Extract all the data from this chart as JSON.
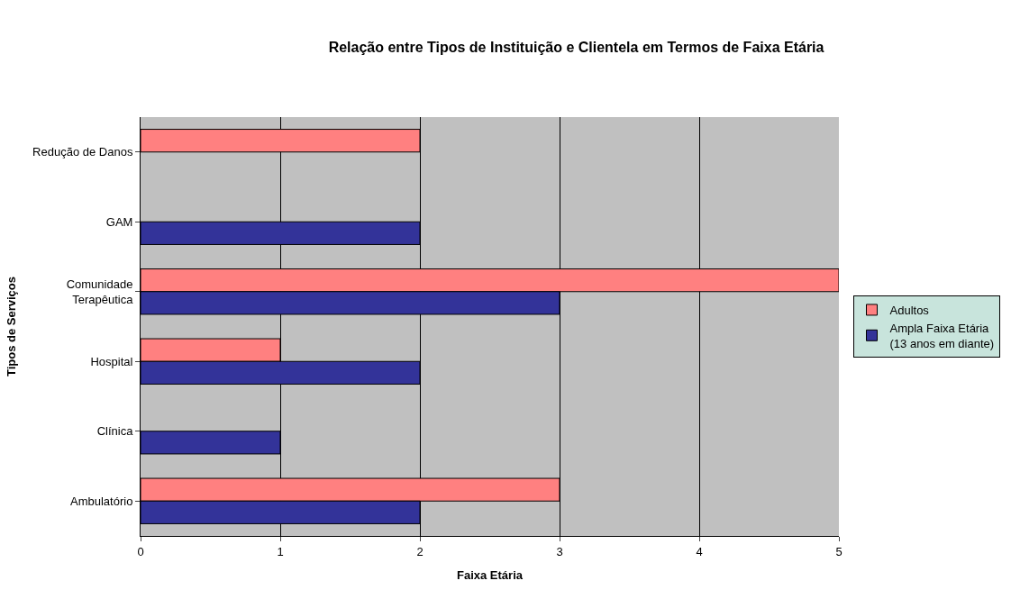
{
  "chart_data": {
    "type": "bar",
    "orientation": "horizontal",
    "title": "Relação entre Tipos de Instituição e Clientela em Termos de Faixa Etária",
    "xlabel": "Faixa Etária",
    "ylabel": "Tipos de Serviços",
    "categories": [
      "Redução de Danos",
      "GAM",
      "Comunidade\nTerapêutica",
      "Hospital",
      "Clínica",
      "Ambulatório"
    ],
    "series": [
      {
        "name": "Adultos",
        "color": "#ff8080",
        "values": [
          2,
          null,
          5,
          1,
          null,
          3
        ]
      },
      {
        "name": "Ampla Faixa Etária\n(13 anos em diante)",
        "color": "#333399",
        "values": [
          null,
          2,
          3,
          2,
          1,
          2
        ]
      }
    ],
    "xlim": [
      0,
      5
    ],
    "xticks": [
      0,
      1,
      2,
      3,
      4,
      5
    ],
    "grid": "x",
    "legend": "right"
  }
}
